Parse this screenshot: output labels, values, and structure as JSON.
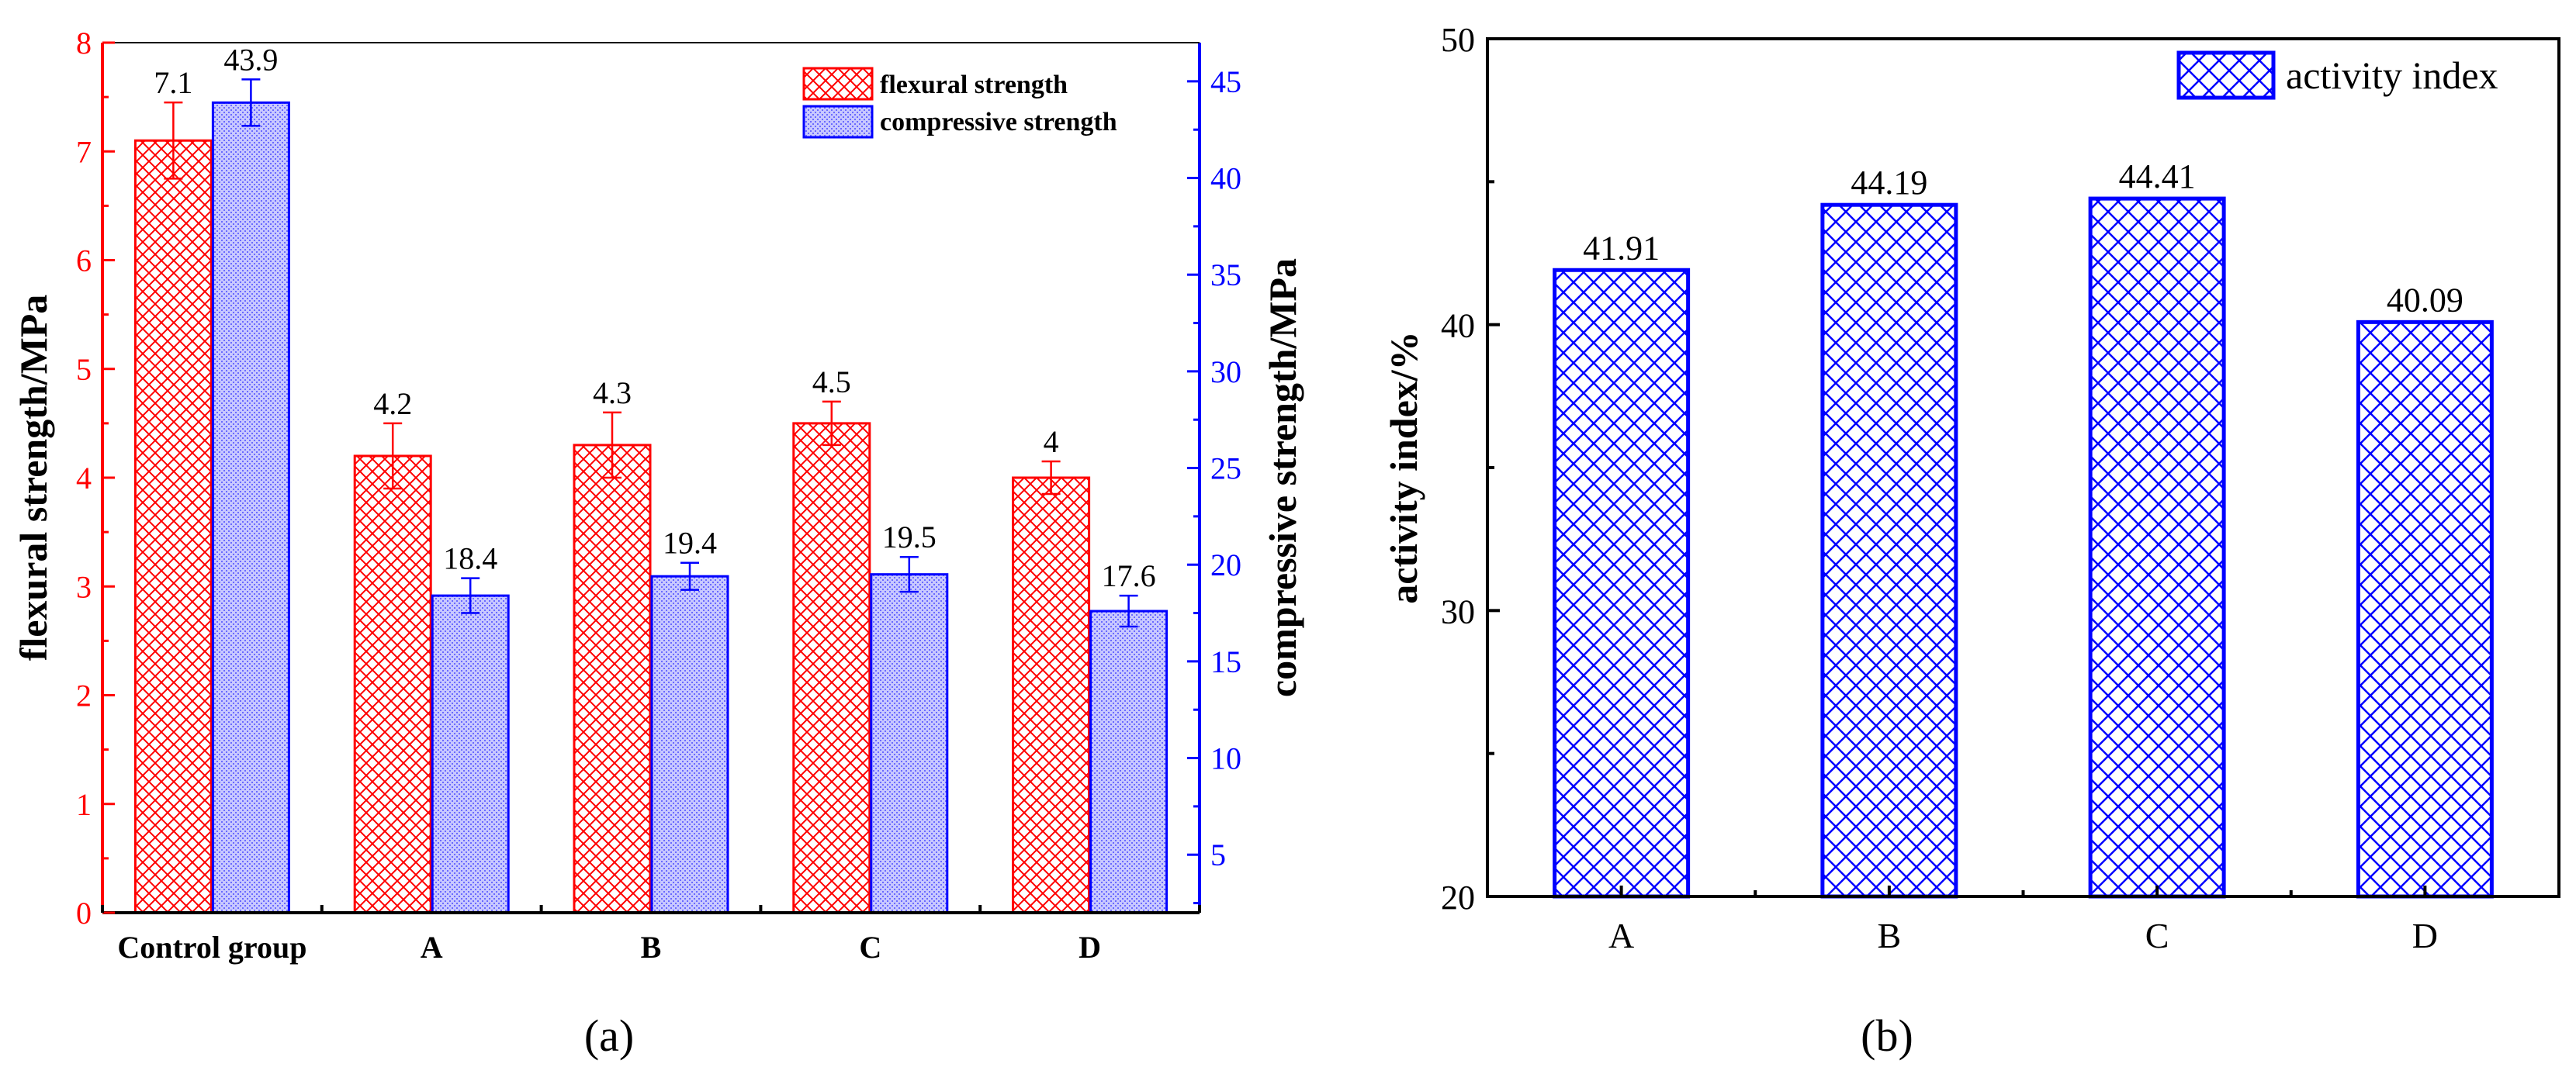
{
  "colors": {
    "flexural": "#ff0000",
    "compressive": "#0000ff",
    "compressive_fill": "#c8c8ff",
    "activity": "#0000ff",
    "axis": "#000000"
  },
  "chart_data": [
    {
      "id": "a",
      "type": "bar",
      "panel_label": "(a)",
      "categories": [
        "Control group",
        "A",
        "B",
        "C",
        "D"
      ],
      "series": [
        {
          "name": "flexural strength",
          "axis": "left",
          "values": [
            7.1,
            4.2,
            4.3,
            4.5,
            4.0
          ],
          "value_labels": [
            "7.1",
            "4.2",
            "4.3",
            "4.5",
            "4"
          ],
          "error": [
            0.35,
            0.3,
            0.3,
            0.2,
            0.15
          ]
        },
        {
          "name": "compressive strength",
          "axis": "right",
          "values": [
            43.9,
            18.4,
            19.4,
            19.5,
            17.6
          ],
          "value_labels": [
            "43.9",
            "18.4",
            "19.4",
            "19.5",
            "17.6"
          ],
          "error": [
            1.2,
            0.9,
            0.7,
            0.9,
            0.8
          ]
        }
      ],
      "ylabel": "flexural strength/MPa",
      "ylim": [
        0,
        8
      ],
      "yticks": [
        "0",
        "1",
        "2",
        "3",
        "4",
        "5",
        "6",
        "7",
        "8"
      ],
      "ylabel_right": "compressive strength/MPa",
      "ylim_right": [
        2,
        47
      ],
      "yticks_right": [
        "5",
        "10",
        "15",
        "20",
        "25",
        "30",
        "35",
        "40",
        "45"
      ],
      "legend": "top-right"
    },
    {
      "id": "b",
      "type": "bar",
      "panel_label": "(b)",
      "categories": [
        "A",
        "B",
        "C",
        "D"
      ],
      "series": [
        {
          "name": "activity index",
          "values": [
            41.91,
            44.19,
            44.41,
            40.09
          ],
          "value_labels": [
            "41.91",
            "44.19",
            "44.41",
            "40.09"
          ]
        }
      ],
      "ylabel": "activity index/%",
      "ylim": [
        20,
        50
      ],
      "yticks": [
        "20",
        "30",
        "40",
        "50"
      ],
      "legend": "top-right"
    }
  ]
}
